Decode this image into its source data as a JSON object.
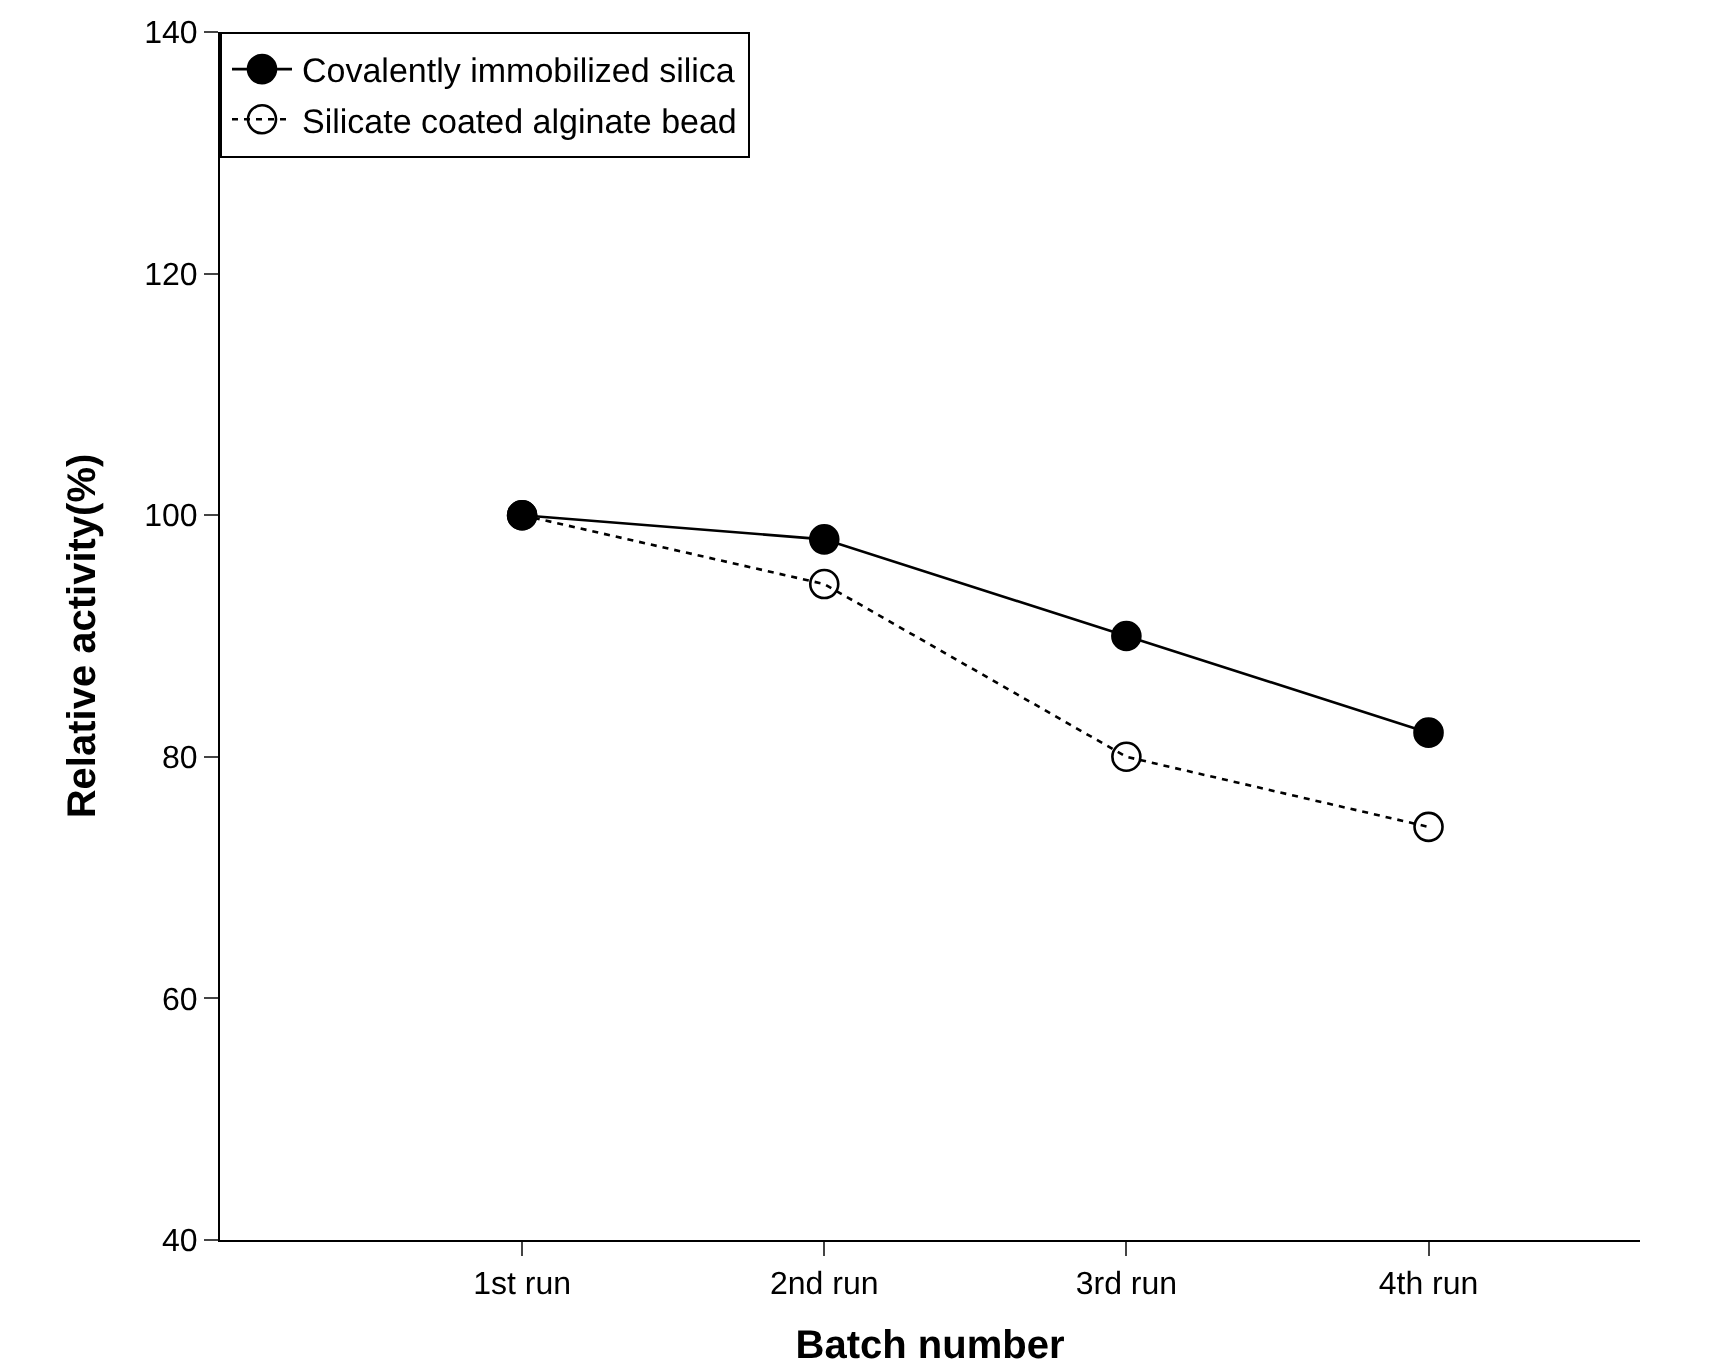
{
  "chart_data": {
    "type": "line",
    "xlabel": "Batch number",
    "ylabel": "Relative activity(%)",
    "categories": [
      "1st run",
      "2nd run",
      "3rd run",
      "4th run"
    ],
    "ylim": [
      40,
      140
    ],
    "yticks": [
      40,
      60,
      80,
      100,
      120,
      140
    ],
    "grid": false,
    "legend": "top left",
    "series": [
      {
        "name": "Covalently immobilized silica",
        "color": "#000000",
        "values": [
          100,
          98,
          90,
          82
        ],
        "marker": "circle",
        "line_style": "solid"
      },
      {
        "name": "Silicate coated alginate bead",
        "color": "#000000",
        "values": [
          100,
          94.3,
          80,
          74.2
        ],
        "marker": "circle-open",
        "line_style": "dotted"
      }
    ]
  }
}
